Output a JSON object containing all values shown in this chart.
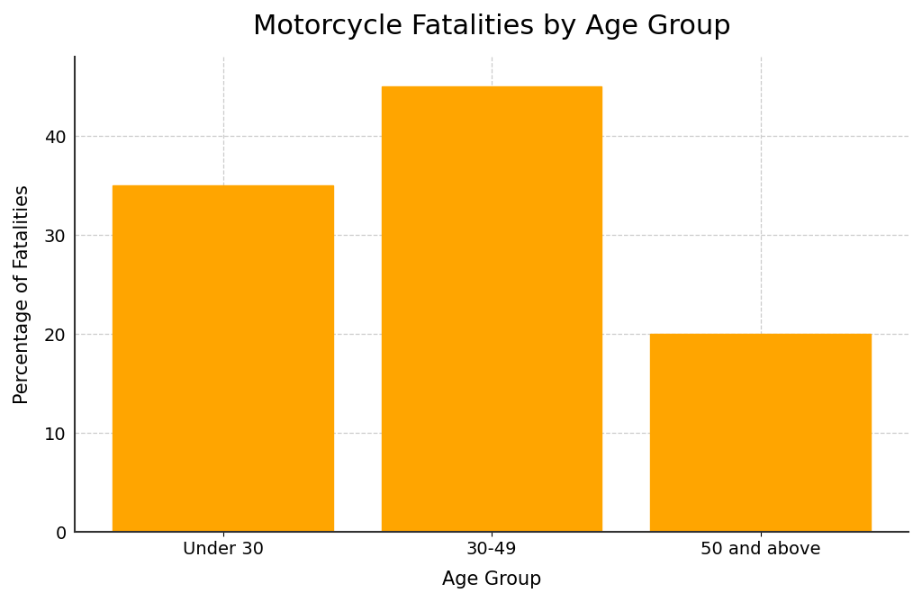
{
  "title": "Motorcycle Fatalities by Age Group",
  "xlabel": "Age Group",
  "ylabel": "Percentage of Fatalities",
  "categories": [
    "Under 30",
    "30-49",
    "50 and above"
  ],
  "values": [
    35,
    45,
    20
  ],
  "bar_color": "#FFA500",
  "bar_edgecolor": "#FFA500",
  "ylim": [
    0,
    48
  ],
  "yticks": [
    0,
    10,
    20,
    30,
    40
  ],
  "grid_color": "#cccccc",
  "grid_linestyle": "--",
  "grid_alpha": 1.0,
  "background_color": "#ffffff",
  "title_fontsize": 22,
  "label_fontsize": 15,
  "tick_fontsize": 14,
  "bar_width": 0.82
}
